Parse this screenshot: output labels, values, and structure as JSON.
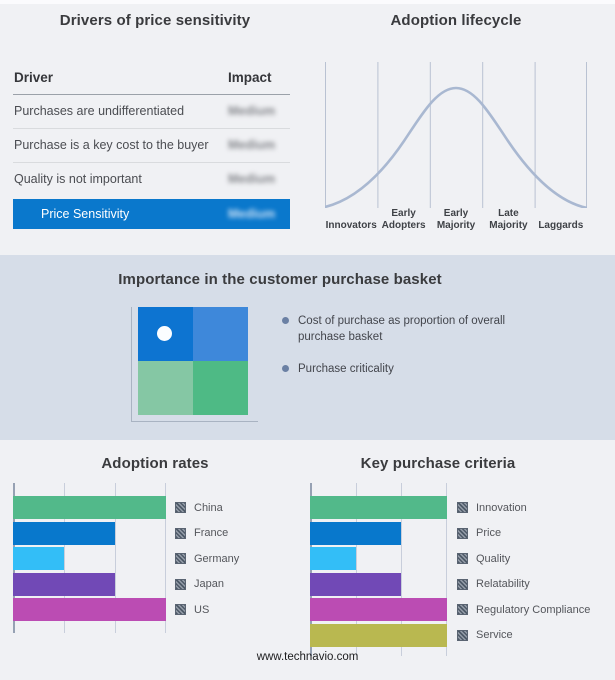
{
  "drivers_panel": {
    "title": "Drivers of price sensitivity",
    "header": {
      "driver": "Driver",
      "impact": "Impact"
    },
    "rows": [
      {
        "driver": "Purchases are undifferentiated",
        "impact": "Medium"
      },
      {
        "driver": "Purchase is a key cost to the buyer",
        "impact": "Medium"
      },
      {
        "driver": "Quality is not important",
        "impact": "Medium"
      }
    ],
    "highlight_row": {
      "driver": "Price Sensitivity",
      "impact": "Medium"
    },
    "accent_color": "#0a78cc",
    "impact_values_blurred": true
  },
  "lifecycle_panel": {
    "title": "Adoption lifecycle",
    "stages": [
      {
        "label": "Innovators"
      },
      {
        "label": "Early Adopters"
      },
      {
        "label": "Early Majority"
      },
      {
        "label": "Late Majority"
      },
      {
        "label": "Laggards"
      }
    ],
    "curve_color": "#a9b8d1"
  },
  "basket_panel": {
    "title": "Importance in the customer purchase basket",
    "bullets": [
      "Cost of purchase as proportion of overall purchase basket",
      "Purchase criticality"
    ],
    "quadrant_colors": {
      "top_left": "#0d74d1",
      "top_right": "#3e88da",
      "bottom_left": "#85c7a4",
      "bottom_right": "#4eba85"
    },
    "band_color": "#d6dde8"
  },
  "footer": {
    "site": "www.technavio.com"
  },
  "chart_data": [
    {
      "type": "table",
      "title": "Drivers of price sensitivity",
      "columns": [
        "Driver",
        "Impact"
      ],
      "rows": [
        [
          "Purchases are undifferentiated",
          "Medium"
        ],
        [
          "Purchase is a key cost to the buyer",
          "Medium"
        ],
        [
          "Quality is not important",
          "Medium"
        ],
        [
          "Price Sensitivity",
          "Medium"
        ]
      ],
      "impact_values_blurred": true
    },
    {
      "type": "area",
      "title": "Adoption lifecycle",
      "categories": [
        "Innovators",
        "Early Adopters",
        "Early Majority",
        "Late Majority",
        "Laggards"
      ],
      "description": "Bell curve peaking over Early Majority",
      "grid": true,
      "legend": false
    },
    {
      "type": "bar",
      "title": "Adoption rates",
      "orientation": "horizontal",
      "categories": [
        "China",
        "France",
        "Germany",
        "Japan",
        "US"
      ],
      "values": [
        3,
        2,
        1,
        2,
        3
      ],
      "xlim": [
        0,
        3
      ],
      "values_estimated_from_gridlines": true,
      "colors": [
        "#52b98a",
        "#0878cc",
        "#33bef7",
        "#7149b6",
        "#bb4cb3"
      ],
      "legend_position": "right"
    },
    {
      "type": "bar",
      "title": "Key purchase criteria",
      "orientation": "horizontal",
      "categories": [
        "Innovation",
        "Price",
        "Quality",
        "Relatability",
        "Regulatory Compliance",
        "Service"
      ],
      "values": [
        3,
        2,
        1,
        2,
        3,
        3
      ],
      "xlim": [
        0,
        3
      ],
      "values_estimated_from_gridlines": true,
      "colors": [
        "#52b98a",
        "#0878cc",
        "#33bef7",
        "#7149b6",
        "#bb4cb3",
        "#b9b850"
      ],
      "legend_position": "right"
    }
  ]
}
